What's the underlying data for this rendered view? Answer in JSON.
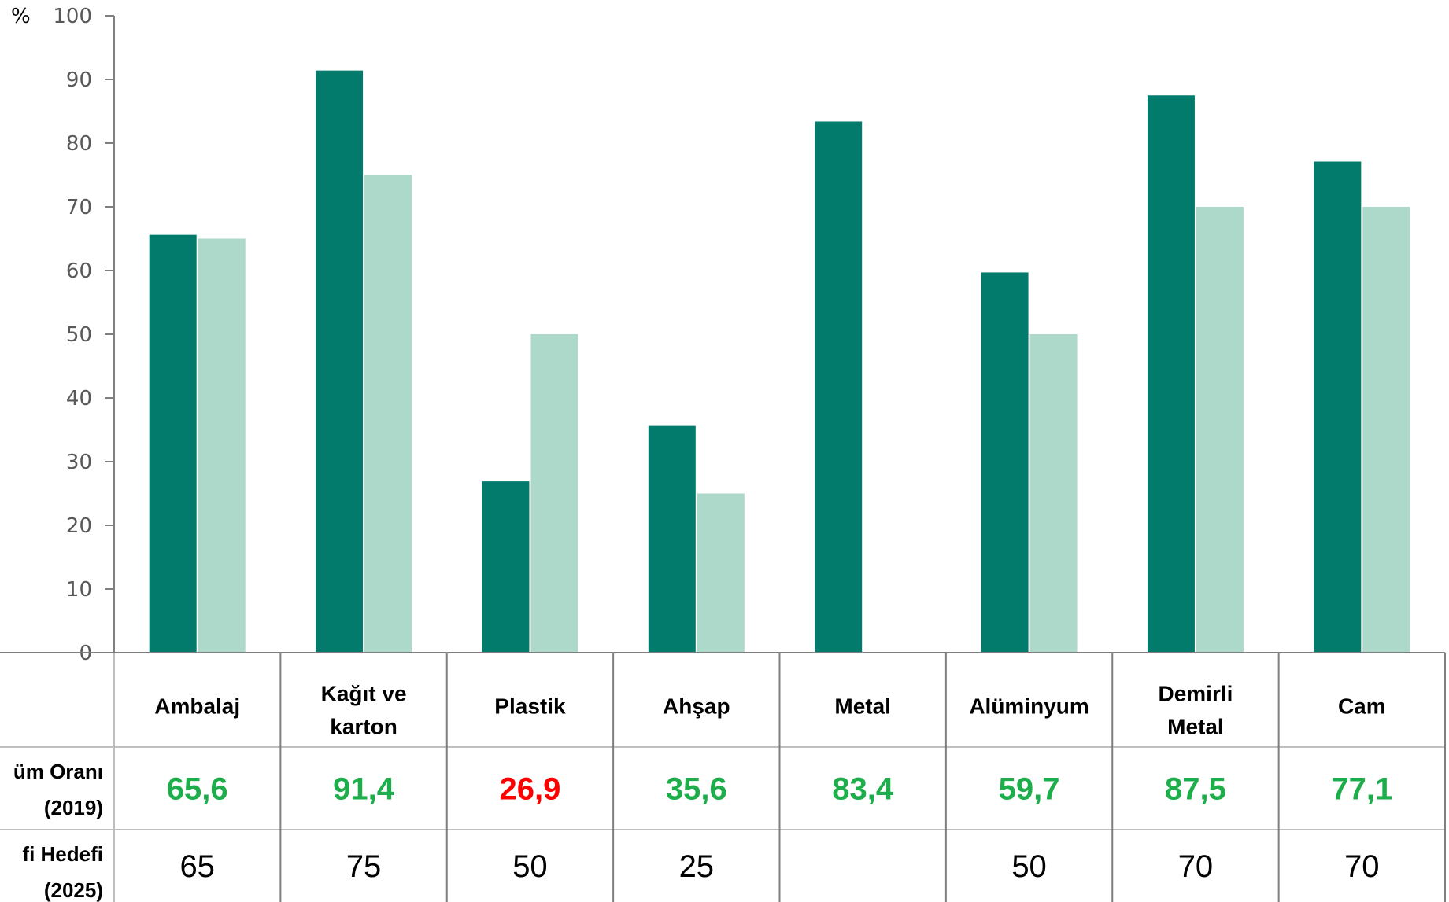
{
  "chart_data": {
    "type": "bar",
    "ylabel": "%",
    "ylim": [
      0,
      100
    ],
    "yticks": [
      0,
      10,
      20,
      30,
      40,
      50,
      60,
      70,
      80,
      90,
      100
    ],
    "categories": [
      {
        "line1": "Ambalaj",
        "line2": ""
      },
      {
        "line1": "Kağıt ve",
        "line2": "karton"
      },
      {
        "line1": "Plastik",
        "line2": ""
      },
      {
        "line1": "Ahşap",
        "line2": ""
      },
      {
        "line1": "Metal",
        "line2": ""
      },
      {
        "line1": "Alüminyum",
        "line2": ""
      },
      {
        "line1": "Demirli",
        "line2": "Metal"
      },
      {
        "line1": "Cam",
        "line2": ""
      }
    ],
    "series": [
      {
        "values": [
          65.6,
          91.4,
          26.9,
          35.6,
          83.4,
          59.7,
          87.5,
          77.1
        ],
        "color": "#037B6C"
      },
      {
        "values": [
          65,
          75,
          50,
          25,
          null,
          50,
          70,
          70
        ],
        "color": "#ACD9CA"
      }
    ],
    "grid": false,
    "table": {
      "row1_header": [
        "üm Oranı",
        "(2019)"
      ],
      "row1_values": [
        "65,6",
        "91,4",
        "26,9",
        "35,6",
        "83,4",
        "59,7",
        "87,5",
        "77,1"
      ],
      "row1_colors": [
        "#1DAE4B",
        "#1DAE4B",
        "#FF0000",
        "#1DAE4B",
        "#1DAE4B",
        "#1DAE4B",
        "#1DAE4B",
        "#1DAE4B"
      ],
      "row2_header": [
        "fi Hedefi",
        "(2025)"
      ],
      "row2_values": [
        "65",
        "75",
        "50",
        "25",
        "",
        "50",
        "70",
        "70"
      ]
    }
  }
}
